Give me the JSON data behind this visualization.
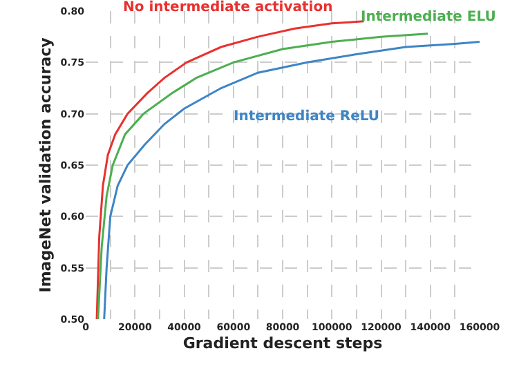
{
  "chart_data": {
    "type": "line",
    "xlabel": "Gradient descent steps",
    "ylabel": "ImageNet validation accuracy",
    "xlim": [
      0,
      160000
    ],
    "ylim": [
      0.5,
      0.8
    ],
    "xticks": [
      0,
      {
        "value": 10000,
        "label": null
      },
      20000,
      {
        "value": 30000,
        "label": null
      },
      40000,
      {
        "value": 50000,
        "label": null
      },
      60000,
      {
        "value": 70000,
        "label": null
      },
      80000,
      {
        "value": 90000,
        "label": null
      },
      100000,
      {
        "value": 110000,
        "label": null
      },
      120000,
      {
        "value": 130000,
        "label": null
      },
      140000,
      {
        "value": 150000,
        "label": null
      },
      160000
    ],
    "yticks": [
      {
        "value": 0.5,
        "label": "0.50"
      },
      0.55,
      {
        "value": 0.6,
        "label": "0.60"
      },
      0.65,
      {
        "value": 0.7,
        "label": "0.70"
      },
      0.75,
      {
        "value": 0.8,
        "label": "0.80"
      }
    ],
    "grid": true,
    "legend": false,
    "line_style": "solid",
    "marker": "none",
    "series": [
      {
        "name": "No intermediate activation",
        "color": "#e8312f",
        "x": [
          4500,
          5500,
          7000,
          9000,
          12000,
          17000,
          25000,
          32000,
          41000,
          55000,
          70000,
          85000,
          100000,
          113000
        ],
        "values": [
          0.5,
          0.58,
          0.63,
          0.66,
          0.68,
          0.7,
          0.72,
          0.735,
          0.75,
          0.765,
          0.775,
          0.783,
          0.788,
          0.79
        ]
      },
      {
        "name": "Intermediate ELU",
        "color": "#4caf50",
        "x": [
          5000,
          6500,
          8500,
          11000,
          16000,
          23500,
          35000,
          45000,
          60000,
          80000,
          100000,
          120000,
          139000
        ],
        "values": [
          0.5,
          0.57,
          0.62,
          0.65,
          0.68,
          0.7,
          0.72,
          0.735,
          0.75,
          0.763,
          0.77,
          0.775,
          0.778
        ]
      },
      {
        "name": "Intermediate ReLU",
        "color": "#3d85c6",
        "x": [
          7500,
          8500,
          10000,
          13000,
          17000,
          24000,
          32000,
          40000,
          55000,
          70000,
          90000,
          110000,
          130000,
          150000,
          160000
        ],
        "values": [
          0.5,
          0.55,
          0.6,
          0.63,
          0.65,
          0.67,
          0.69,
          0.705,
          0.725,
          0.74,
          0.75,
          0.758,
          0.765,
          0.768,
          0.77
        ]
      }
    ]
  }
}
